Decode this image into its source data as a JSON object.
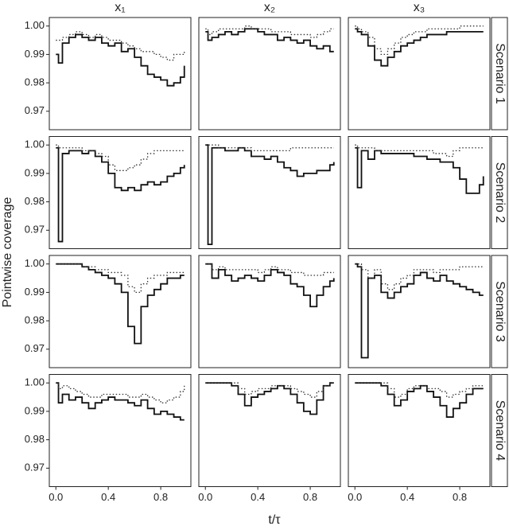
{
  "chart_data": {
    "type": "line",
    "x_label": "t/τ",
    "y_label": "Pointwise coverage",
    "columns": [
      "x₁",
      "x₂",
      "x₃"
    ],
    "rows": [
      "Scenario 1",
      "Scenario 2",
      "Scenario 3",
      "Scenario 4"
    ],
    "xlim": [
      -0.05,
      1.03
    ],
    "ylim": [
      0.9635,
      1.003
    ],
    "xticks": [
      {
        "value": 0,
        "label": "0.0"
      },
      0.4,
      0.8
    ],
    "yticks": [
      0.97,
      0.98,
      0.99,
      {
        "value": 1,
        "label": "1.00"
      }
    ],
    "step": true,
    "x": [
      0,
      0.02,
      0.05,
      0.1,
      0.15,
      0.2,
      0.25,
      0.3,
      0.35,
      0.4,
      0.45,
      0.5,
      0.55,
      0.6,
      0.65,
      0.7,
      0.75,
      0.8,
      0.85,
      0.9,
      0.95,
      0.98
    ],
    "panels": [
      {
        "series": [
          {
            "style": "solid",
            "color": "#111111",
            "values": [
              0.99,
              0.987,
              0.994,
              0.996,
              0.997,
              0.996,
              0.995,
              0.996,
              0.994,
              0.993,
              0.994,
              0.991,
              0.992,
              0.989,
              0.986,
              0.983,
              0.982,
              0.981,
              0.979,
              0.98,
              0.982,
              0.986
            ]
          },
          {
            "style": "dotted",
            "color": "#333333",
            "values": [
              0.995,
              0.995,
              0.996,
              0.997,
              0.998,
              0.997,
              0.996,
              0.997,
              0.996,
              0.995,
              0.995,
              0.994,
              0.993,
              0.992,
              0.991,
              0.991,
              0.99,
              0.989,
              0.988,
              0.99,
              0.99,
              0.991
            ]
          }
        ]
      },
      {
        "series": [
          {
            "style": "solid",
            "color": "#111111",
            "values": [
              0.998,
              0.995,
              0.996,
              0.997,
              0.998,
              0.997,
              0.998,
              0.999,
              0.999,
              0.998,
              0.997,
              0.997,
              0.995,
              0.996,
              0.995,
              0.994,
              0.995,
              0.993,
              0.992,
              0.993,
              0.991,
              0.991
            ]
          },
          {
            "style": "dotted",
            "color": "#333333",
            "values": [
              0.999,
              0.997,
              0.998,
              0.999,
              0.999,
              0.999,
              0.999,
              1.0,
              0.999,
              0.999,
              0.999,
              0.998,
              0.998,
              0.998,
              0.997,
              0.997,
              0.997,
              0.996,
              0.997,
              0.998,
              0.999,
              0.999
            ]
          }
        ]
      },
      {
        "series": [
          {
            "style": "solid",
            "color": "#111111",
            "values": [
              0.999,
              0.998,
              0.997,
              0.993,
              0.988,
              0.986,
              0.989,
              0.991,
              0.993,
              0.994,
              0.995,
              0.996,
              0.997,
              0.997,
              0.997,
              0.998,
              0.998,
              0.998,
              0.998,
              0.998,
              0.998,
              0.998
            ]
          },
          {
            "style": "dotted",
            "color": "#333333",
            "values": [
              1.0,
              0.999,
              0.998,
              0.996,
              0.992,
              0.99,
              0.992,
              0.994,
              0.996,
              0.997,
              0.998,
              0.998,
              0.999,
              0.999,
              0.999,
              0.999,
              0.999,
              1.0,
              1.0,
              1.0,
              1.0,
              1.0
            ]
          }
        ]
      },
      {
        "series": [
          {
            "style": "solid",
            "color": "#111111",
            "values": [
              0.999,
              0.966,
              0.997,
              0.998,
              0.998,
              0.997,
              0.998,
              0.996,
              0.994,
              0.99,
              0.985,
              0.984,
              0.985,
              0.984,
              0.986,
              0.987,
              0.986,
              0.987,
              0.989,
              0.99,
              0.992,
              0.993
            ]
          },
          {
            "style": "dotted",
            "color": "#333333",
            "values": [
              1.0,
              0.999,
              0.999,
              0.999,
              0.999,
              0.998,
              0.998,
              0.997,
              0.996,
              0.993,
              0.991,
              0.991,
              0.992,
              0.993,
              0.995,
              0.997,
              0.998,
              0.998,
              0.998,
              0.998,
              0.998,
              0.998
            ]
          }
        ]
      },
      {
        "series": [
          {
            "style": "solid",
            "color": "#111111",
            "values": [
              1.0,
              0.965,
              0.999,
              0.999,
              0.998,
              0.998,
              0.999,
              0.998,
              0.996,
              0.996,
              0.995,
              0.996,
              0.994,
              0.992,
              0.991,
              0.989,
              0.99,
              0.99,
              0.991,
              0.991,
              0.993,
              0.994
            ]
          },
          {
            "style": "dotted",
            "color": "#333333",
            "values": [
              1.0,
              1.0,
              1.0,
              0.999,
              0.999,
              0.999,
              0.999,
              0.999,
              0.998,
              0.998,
              0.998,
              0.998,
              0.998,
              0.998,
              0.999,
              0.999,
              0.999,
              0.999,
              0.999,
              0.999,
              0.999,
              0.999
            ]
          }
        ]
      },
      {
        "series": [
          {
            "style": "solid",
            "color": "#111111",
            "values": [
              0.999,
              0.985,
              0.998,
              0.995,
              0.998,
              0.997,
              0.997,
              0.997,
              0.997,
              0.997,
              0.996,
              0.996,
              0.995,
              0.995,
              0.994,
              0.994,
              0.992,
              0.988,
              0.983,
              0.983,
              0.986,
              0.989
            ]
          },
          {
            "style": "dotted",
            "color": "#333333",
            "values": [
              1.0,
              0.999,
              0.999,
              0.999,
              0.998,
              0.998,
              0.998,
              0.998,
              0.998,
              0.998,
              0.998,
              0.998,
              0.998,
              0.997,
              0.997,
              0.996,
              0.998,
              0.999,
              0.999,
              0.999,
              0.999,
              0.999
            ]
          }
        ]
      },
      {
        "series": [
          {
            "style": "solid",
            "color": "#111111",
            "values": [
              1.0,
              1.0,
              1.0,
              1.0,
              1.0,
              0.999,
              0.998,
              0.997,
              0.996,
              0.995,
              0.993,
              0.99,
              0.978,
              0.972,
              0.985,
              0.989,
              0.991,
              0.993,
              0.995,
              0.995,
              0.996,
              0.996
            ]
          },
          {
            "style": "dotted",
            "color": "#333333",
            "values": [
              1.0,
              1.0,
              1.0,
              1.0,
              1.0,
              0.999,
              0.999,
              0.998,
              0.998,
              0.997,
              0.997,
              0.996,
              0.992,
              0.99,
              0.993,
              0.995,
              0.996,
              0.996,
              0.997,
              0.997,
              0.997,
              0.997
            ]
          }
        ]
      },
      {
        "series": [
          {
            "style": "solid",
            "color": "#111111",
            "values": [
              1.0,
              1.0,
              0.995,
              0.998,
              0.996,
              0.994,
              0.995,
              0.996,
              0.995,
              0.994,
              0.996,
              0.998,
              0.997,
              0.996,
              0.993,
              0.992,
              0.989,
              0.985,
              0.989,
              0.992,
              0.994,
              0.995
            ]
          },
          {
            "style": "dotted",
            "color": "#333333",
            "values": [
              1.0,
              1.0,
              0.998,
              0.999,
              0.998,
              0.998,
              0.998,
              0.998,
              0.998,
              0.997,
              0.998,
              0.999,
              0.998,
              0.998,
              0.997,
              0.997,
              0.996,
              0.996,
              0.996,
              0.997,
              0.997,
              0.997
            ]
          }
        ]
      },
      {
        "series": [
          {
            "style": "solid",
            "color": "#111111",
            "values": [
              1.0,
              0.999,
              0.967,
              0.995,
              0.996,
              0.99,
              0.988,
              0.99,
              0.992,
              0.993,
              0.996,
              0.997,
              0.995,
              0.994,
              0.996,
              0.994,
              0.993,
              0.992,
              0.991,
              0.99,
              0.989,
              0.989
            ]
          },
          {
            "style": "dotted",
            "color": "#333333",
            "values": [
              1.0,
              1.0,
              0.998,
              0.995,
              0.998,
              0.993,
              0.991,
              0.993,
              0.995,
              0.996,
              0.998,
              0.998,
              0.998,
              0.997,
              0.998,
              0.998,
              0.998,
              0.999,
              0.999,
              0.999,
              0.999,
              0.999
            ]
          }
        ]
      },
      {
        "series": [
          {
            "style": "solid",
            "color": "#111111",
            "values": [
              1.0,
              0.993,
              0.996,
              0.994,
              0.995,
              0.993,
              0.991,
              0.993,
              0.994,
              0.995,
              0.994,
              0.994,
              0.993,
              0.992,
              0.994,
              0.991,
              0.989,
              0.99,
              0.989,
              0.988,
              0.987,
              0.987
            ]
          },
          {
            "style": "dotted",
            "color": "#333333",
            "values": [
              1.0,
              0.998,
              0.999,
              0.998,
              0.997,
              0.996,
              0.995,
              0.995,
              0.996,
              0.996,
              0.996,
              0.996,
              0.995,
              0.995,
              0.996,
              0.995,
              0.994,
              0.993,
              0.994,
              0.995,
              0.997,
              0.999
            ]
          }
        ]
      },
      {
        "series": [
          {
            "style": "solid",
            "color": "#111111",
            "values": [
              1.0,
              1.0,
              1.0,
              1.0,
              1.0,
              0.999,
              0.996,
              0.992,
              0.995,
              0.996,
              0.997,
              0.998,
              0.999,
              0.998,
              0.996,
              0.993,
              0.99,
              0.989,
              0.994,
              0.999,
              1.0,
              1.0
            ]
          },
          {
            "style": "dotted",
            "color": "#333333",
            "values": [
              1.0,
              1.0,
              1.0,
              1.0,
              1.0,
              1.0,
              0.998,
              0.996,
              0.997,
              0.998,
              0.998,
              0.999,
              0.999,
              0.999,
              0.998,
              0.997,
              0.996,
              0.995,
              0.997,
              0.999,
              1.0,
              1.0
            ]
          }
        ]
      },
      {
        "series": [
          {
            "style": "solid",
            "color": "#111111",
            "values": [
              1.0,
              1.0,
              1.0,
              1.0,
              1.0,
              0.999,
              0.996,
              0.992,
              0.994,
              0.997,
              0.998,
              0.999,
              0.997,
              0.995,
              0.992,
              0.988,
              0.991,
              0.993,
              0.996,
              0.998,
              0.998,
              0.998
            ]
          },
          {
            "style": "dotted",
            "color": "#333333",
            "values": [
              1.0,
              1.0,
              1.0,
              1.0,
              1.0,
              1.0,
              0.998,
              0.995,
              0.996,
              0.998,
              0.999,
              0.999,
              0.998,
              0.998,
              0.997,
              0.995,
              0.996,
              0.997,
              0.998,
              0.999,
              0.999,
              0.999
            ]
          }
        ]
      }
    ]
  }
}
